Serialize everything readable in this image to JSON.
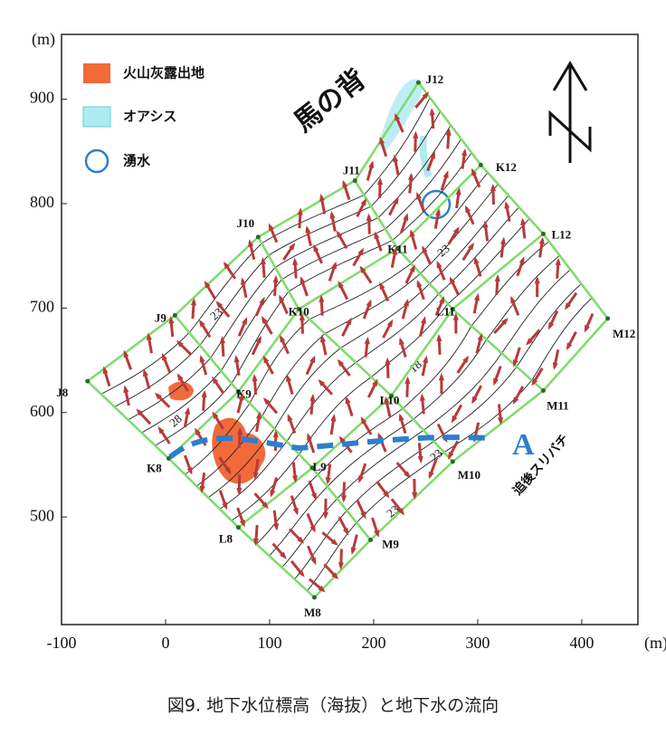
{
  "axes": {
    "xlim": [
      -100,
      454
    ],
    "ylim": [
      397,
      962
    ],
    "xticks": [
      -100,
      0,
      100,
      200,
      300,
      400
    ],
    "yticks": [
      500,
      600,
      700,
      800,
      900
    ],
    "x_unit": "(m)",
    "y_unit": "(m)"
  },
  "legend": [
    "火山灰露出地",
    "オアシス",
    "湧水"
  ],
  "grid_rows": [
    [
      {
        "label": "J8",
        "x": -75,
        "y": 630
      },
      {
        "label": "J9",
        "x": 9,
        "y": 693
      },
      {
        "label": "J10",
        "x": 89,
        "y": 768
      },
      {
        "label": "J11",
        "x": 182,
        "y": 822
      },
      {
        "label": "J12",
        "x": 243,
        "y": 916
      }
    ],
    [
      {
        "label": "K8",
        "x": 3,
        "y": 556
      },
      {
        "label": "K9",
        "x": 70,
        "y": 620
      },
      {
        "label": "K10",
        "x": 128,
        "y": 699
      },
      {
        "label": "K11",
        "x": 223,
        "y": 757
      },
      {
        "label": "K12",
        "x": 303,
        "y": 837
      }
    ],
    [
      {
        "label": "L8",
        "x": 70,
        "y": 490
      },
      {
        "label": "L9",
        "x": 141,
        "y": 547
      },
      {
        "label": "L10",
        "x": 217,
        "y": 616
      },
      {
        "label": "L11",
        "x": 276,
        "y": 699
      },
      {
        "label": "L12",
        "x": 363,
        "y": 771
      }
    ],
    [
      {
        "label": "M8",
        "x": 143,
        "y": 423
      },
      {
        "label": "M9",
        "x": 197,
        "y": 478
      },
      {
        "label": "M10",
        "x": 276,
        "y": 553
      },
      {
        "label": "M11",
        "x": 363,
        "y": 621
      },
      {
        "label": "M12",
        "x": 425,
        "y": 690
      }
    ]
  ],
  "annotations": {
    "ridge": "馬の背",
    "section": "A",
    "place": "追後スリバチ",
    "contours": [
      "23",
      "28",
      "23",
      "18",
      "23",
      "23"
    ]
  },
  "caption": "図9. 地下水位標高（海抜）と地下水の流向"
}
